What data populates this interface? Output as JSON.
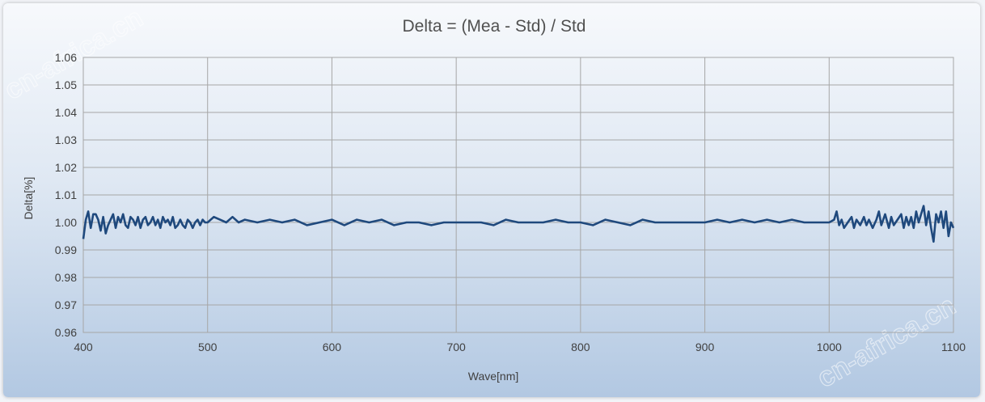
{
  "watermark": "cn-africa.cn",
  "chart_data": {
    "type": "line",
    "title": "Delta = (Mea - Std) / Std",
    "xlabel": "Wave[nm]",
    "ylabel": "Delta[%]",
    "xlim": [
      400,
      1100
    ],
    "ylim": [
      0.96,
      1.06
    ],
    "xticks": [
      "400",
      "500",
      "600",
      "700",
      "800",
      "900",
      "1000",
      "1100"
    ],
    "yticks": [
      "0.96",
      "0.97",
      "0.98",
      "0.99",
      "1.00",
      "1.01",
      "1.02",
      "1.03",
      "1.04",
      "1.05",
      "1.06"
    ],
    "grid": true,
    "legend": "none",
    "series_color": "#1f497d",
    "series": [
      {
        "x": [
          400,
          402,
          404,
          406,
          408,
          410,
          412,
          414,
          416,
          418,
          420,
          422,
          424,
          426,
          428,
          430,
          432,
          434,
          436,
          438,
          440,
          442,
          444,
          446,
          448,
          450,
          452,
          454,
          456,
          458,
          460,
          462,
          464,
          466,
          468,
          470,
          472,
          474,
          476,
          478,
          480,
          482,
          484,
          486,
          488,
          490,
          492,
          494,
          496,
          498,
          500,
          505,
          510,
          515,
          520,
          525,
          530,
          540,
          550,
          560,
          570,
          580,
          590,
          600,
          610,
          620,
          630,
          640,
          650,
          660,
          670,
          680,
          690,
          700,
          710,
          720,
          730,
          740,
          750,
          760,
          770,
          780,
          790,
          800,
          810,
          820,
          830,
          840,
          850,
          860,
          870,
          880,
          890,
          900,
          910,
          920,
          930,
          940,
          950,
          960,
          970,
          980,
          990,
          1000,
          1004,
          1006,
          1008,
          1010,
          1012,
          1015,
          1018,
          1020,
          1022,
          1025,
          1028,
          1030,
          1032,
          1035,
          1038,
          1040,
          1042,
          1045,
          1048,
          1050,
          1052,
          1055,
          1058,
          1060,
          1062,
          1064,
          1066,
          1068,
          1070,
          1072,
          1074,
          1076,
          1078,
          1080,
          1082,
          1084,
          1086,
          1088,
          1090,
          1092,
          1094,
          1096,
          1098,
          1100
        ],
        "values": [
          0.994,
          1.001,
          1.004,
          0.998,
          1.003,
          1.003,
          1.001,
          0.997,
          1.002,
          0.996,
          0.999,
          1.001,
          1.003,
          0.998,
          1.002,
          1.0,
          1.003,
          0.999,
          0.998,
          1.002,
          1.001,
          0.999,
          1.002,
          0.998,
          1.001,
          1.002,
          0.999,
          1.0,
          1.002,
          0.999,
          1.001,
          0.998,
          1.002,
          1.0,
          1.001,
          0.999,
          1.002,
          0.998,
          0.999,
          1.001,
          0.999,
          0.998,
          1.001,
          1.0,
          0.998,
          1.0,
          1.001,
          0.999,
          1.001,
          1.0,
          1.0,
          1.002,
          1.001,
          1.0,
          1.002,
          1.0,
          1.001,
          1.0,
          1.001,
          1.0,
          1.001,
          0.999,
          1.0,
          1.001,
          0.999,
          1.001,
          1.0,
          1.001,
          0.999,
          1.0,
          1.0,
          0.999,
          1.0,
          1.0,
          1.0,
          1.0,
          0.999,
          1.001,
          1.0,
          1.0,
          1.0,
          1.001,
          1.0,
          1.0,
          0.999,
          1.001,
          1.0,
          0.999,
          1.001,
          1.0,
          1.0,
          1.0,
          1.0,
          1.0,
          1.001,
          1.0,
          1.001,
          1.0,
          1.001,
          1.0,
          1.001,
          1.0,
          1.0,
          1.0,
          1.001,
          1.004,
          0.999,
          1.001,
          0.998,
          1.0,
          1.002,
          0.998,
          1.001,
          0.999,
          1.002,
          0.999,
          1.001,
          0.998,
          1.001,
          1.004,
          0.999,
          1.003,
          0.998,
          1.002,
          0.999,
          1.001,
          1.003,
          0.998,
          1.002,
          0.999,
          1.002,
          0.998,
          1.004,
          1.0,
          1.003,
          1.006,
          0.999,
          1.004,
          0.998,
          0.993,
          1.003,
          1.0,
          1.004,
          0.998,
          1.004,
          0.995,
          1.0,
          0.998
        ]
      }
    ]
  }
}
